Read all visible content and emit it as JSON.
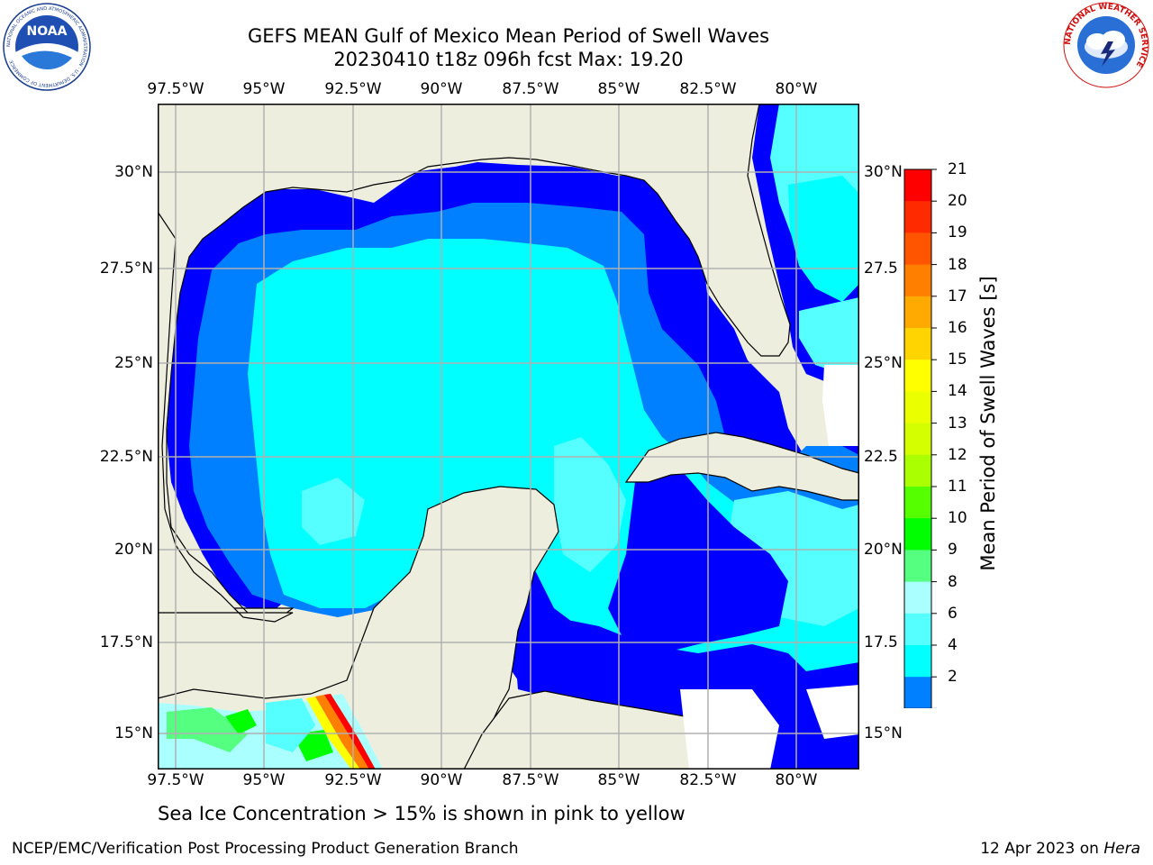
{
  "title": {
    "line1": "GEFS MEAN Gulf of Mexico Mean Period of Swell Waves",
    "line2": "20230410 t18z 096h fcst   Max: 19.20"
  },
  "axes": {
    "lon_labels": [
      "97.5°W",
      "95°W",
      "92.5°W",
      "90°W",
      "87.5°W",
      "85°W",
      "82.5°W",
      "80°W"
    ],
    "lat_labels_left": [
      "30°N",
      "27.5°N",
      "25°N",
      "22.5°N",
      "20°N",
      "17.5°N",
      "15°N"
    ],
    "lat_labels_right": [
      "30°N",
      "27.5",
      "25°N",
      "22.5",
      "20°N",
      "17.5",
      "15°N"
    ]
  },
  "colorbar": {
    "label": "Mean Period of Swell Waves [s]",
    "ticks": [
      "21",
      "20",
      "19",
      "18",
      "17",
      "16",
      "15",
      "14",
      "13",
      "12",
      "11",
      "10",
      "9",
      "8",
      "6",
      "4",
      "2"
    ],
    "colors": [
      "#ff0000",
      "#ff2a00",
      "#ff5500",
      "#ff8000",
      "#ffaa00",
      "#ffd400",
      "#ffff00",
      "#eaff00",
      "#d4ff00",
      "#aaff00",
      "#55ff00",
      "#00ff00",
      "#55ff80",
      "#aaffff",
      "#55ffff",
      "#00ffff",
      "#0080ff"
    ],
    "under_color": "#0000ff"
  },
  "map_colors": {
    "land": "#eeeedf",
    "missing": "#ffffff",
    "c2": "#0000ff",
    "c4": "#0080ff",
    "c6": "#00ffff",
    "c8": "#55ffff",
    "c9": "#aaffff",
    "c10": "#55ff80",
    "c11": "#00ff00",
    "c12": "#aaff00",
    "c13": "#ffff00",
    "c14": "#ff8000",
    "c15": "#ff0000",
    "grid": "#b0b0b0"
  },
  "footer": {
    "note": "Sea Ice Concentration > 15% is shown in pink to yellow",
    "credit": "NCEP/EMC/Verification Post Processing Product Generation Branch",
    "date": "12 Apr 2023 on",
    "host": "Hera"
  },
  "logos": {
    "noaa_text": "NOAA",
    "noaa_ring": "NATIONAL OCEANIC AND ATMOSPHERIC ADMINISTRATION · U.S. DEPARTMENT OF COMMERCE",
    "nws_ring": "NATIONAL WEATHER SERVICE"
  }
}
